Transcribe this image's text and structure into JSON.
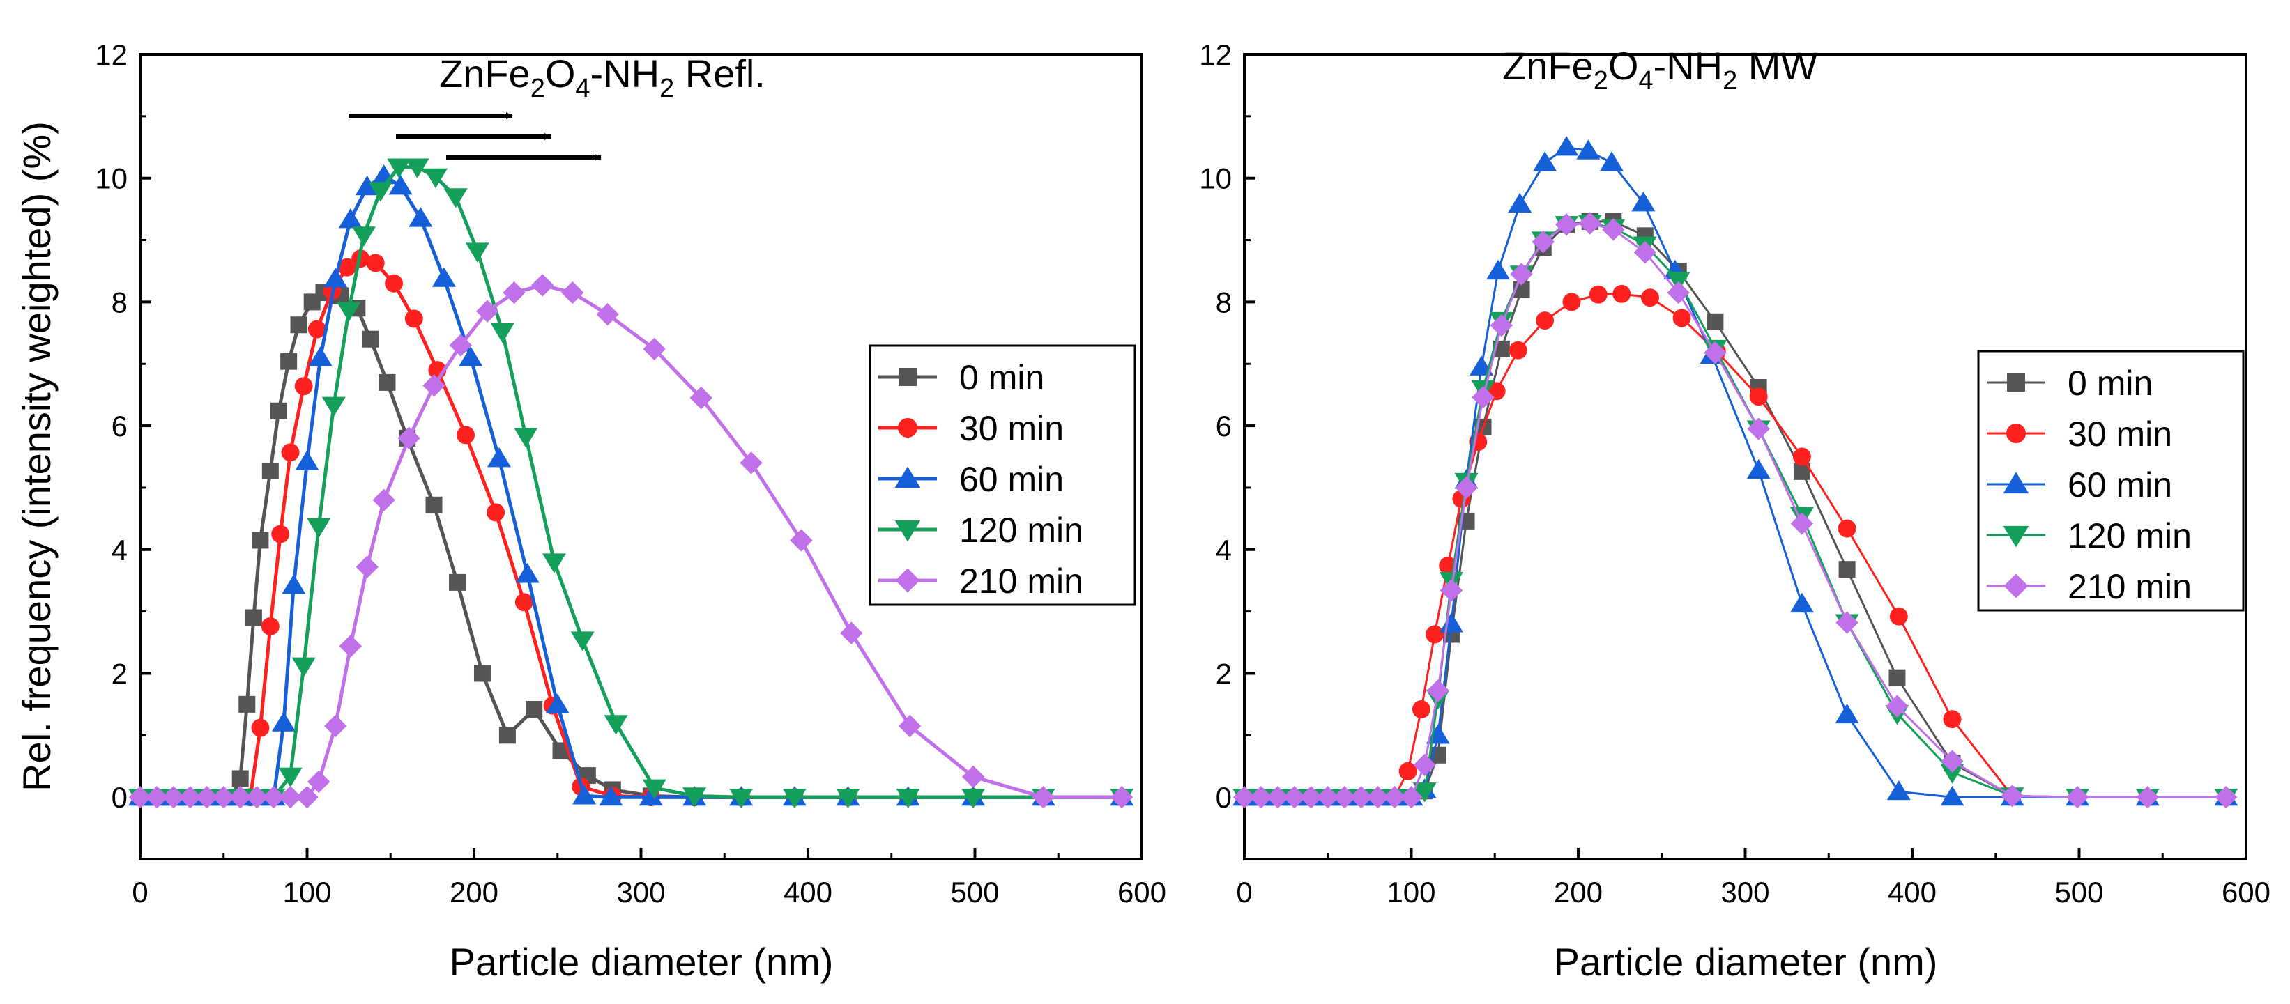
{
  "chart_data": [
    {
      "type": "line",
      "title_parts": [
        "ZnFe",
        "2",
        "O",
        "4",
        "-NH",
        "2",
        " Refl."
      ],
      "xlabel": "Particle diameter (nm)",
      "ylabel": "Rel. frequency (intensity weighted) (%)",
      "xlim": [
        0,
        600
      ],
      "ylim": [
        -1,
        12
      ],
      "xticks": [
        "0",
        "100",
        "200",
        "300",
        "400",
        "500",
        "600"
      ],
      "yticks": [
        "0",
        "2",
        "4",
        "6",
        "8",
        "10",
        "12"
      ],
      "legend_position": "right",
      "annotation": "three arrows pointing right above the peaks",
      "series": [
        {
          "name": "0 min",
          "color": "#555555",
          "marker": "square",
          "x": [
            0,
            10,
            20,
            30,
            40,
            50,
            55,
            60,
            64,
            68,
            72,
            78,
            83,
            89,
            95,
            103,
            110,
            120,
            130,
            138,
            148,
            160,
            176,
            190,
            205,
            220,
            236,
            252,
            268,
            283,
            306,
            332,
            360,
            392,
            424,
            460,
            499,
            541,
            588
          ],
          "y": [
            0,
            0,
            0,
            0,
            0,
            0,
            0,
            0.3,
            1.5,
            2.9,
            4.15,
            5.27,
            6.24,
            7.04,
            7.63,
            8.0,
            8.15,
            8.1,
            7.9,
            7.4,
            6.7,
            5.8,
            4.72,
            3.47,
            2.0,
            1.0,
            1.42,
            0.75,
            0.35,
            0.12,
            0.02,
            0,
            0,
            0,
            0,
            0,
            0,
            0,
            0
          ]
        },
        {
          "name": "30 min",
          "color": "#ff2020",
          "marker": "circle",
          "x": [
            0,
            10,
            20,
            30,
            40,
            50,
            60,
            66,
            72,
            78,
            84,
            90,
            98,
            106,
            115,
            124,
            132,
            141,
            152,
            164,
            178,
            195,
            213,
            230,
            247,
            264,
            283,
            306,
            332,
            360,
            392,
            424,
            460,
            499,
            541,
            588
          ],
          "y": [
            0,
            0,
            0,
            0,
            0,
            0,
            0,
            0,
            1.12,
            2.76,
            4.25,
            5.57,
            6.64,
            7.56,
            8.18,
            8.56,
            8.7,
            8.63,
            8.3,
            7.73,
            6.9,
            5.85,
            4.6,
            3.15,
            1.48,
            0.17,
            0.02,
            0,
            0,
            0,
            0,
            0,
            0,
            0,
            0,
            0
          ],
          "x_use": [
            0,
            10,
            20,
            30,
            40,
            50,
            60,
            66,
            72,
            78,
            84,
            90,
            98,
            106,
            115,
            124,
            132,
            141,
            152,
            164,
            178,
            195,
            213,
            230,
            247,
            264
          ]
        },
        {
          "name": "60 min",
          "color": "#1560d8",
          "marker": "triangle-up",
          "x": [
            0,
            10,
            20,
            30,
            40,
            50,
            60,
            70,
            80,
            86,
            92,
            100,
            108,
            117,
            126,
            136,
            146,
            156,
            168,
            182,
            198,
            215,
            232,
            250,
            266,
            282,
            306,
            332,
            360,
            392,
            424,
            460,
            499,
            541,
            588
          ],
          "y": [
            0,
            0,
            0,
            0,
            0,
            0,
            0,
            0,
            0,
            1.2,
            3.42,
            5.42,
            7.1,
            8.37,
            9.33,
            9.86,
            10.04,
            9.87,
            9.35,
            8.38,
            7.1,
            5.47,
            3.6,
            1.49,
            0.02,
            0,
            0,
            0,
            0,
            0,
            0,
            0,
            0,
            0,
            0
          ]
        },
        {
          "name": "120 min",
          "color": "#14a05a",
          "marker": "triangle-down",
          "x": [
            0,
            10,
            20,
            30,
            40,
            50,
            60,
            70,
            80,
            90,
            98,
            107,
            116,
            125,
            134,
            144,
            155,
            166,
            177,
            189,
            202,
            217,
            231,
            248,
            265,
            285,
            308,
            332,
            360,
            392,
            424,
            460,
            499,
            541,
            588
          ],
          "y": [
            0,
            0,
            0,
            0,
            0,
            0,
            0,
            0,
            0,
            0.34,
            2.12,
            4.37,
            6.33,
            7.86,
            9.08,
            9.8,
            10.18,
            10.18,
            10.02,
            9.7,
            8.82,
            7.52,
            5.83,
            3.8,
            2.54,
            1.19,
            0.15,
            0.02,
            0,
            0,
            0,
            0,
            0,
            0,
            0
          ]
        },
        {
          "name": "210 min",
          "color": "#c070e8",
          "marker": "diamond",
          "x": [
            0,
            10,
            20,
            30,
            40,
            50,
            60,
            70,
            80,
            90,
            100,
            107,
            117,
            126,
            136,
            146,
            161,
            176,
            192,
            208,
            224,
            241,
            259,
            280,
            308,
            336,
            366,
            396,
            426,
            461,
            499,
            541,
            588
          ],
          "y": [
            0,
            0,
            0,
            0,
            0,
            0,
            0,
            0,
            0,
            0,
            0,
            0.25,
            1.15,
            2.44,
            3.72,
            4.8,
            5.8,
            6.65,
            7.3,
            7.85,
            8.15,
            8.27,
            8.15,
            7.8,
            7.24,
            6.45,
            5.4,
            4.15,
            2.65,
            1.15,
            0.33,
            0,
            0
          ]
        }
      ]
    },
    {
      "type": "line",
      "title_parts": [
        "ZnFe",
        "2",
        "O",
        "4",
        "-NH",
        "2",
        " MW"
      ],
      "xlabel": "Particle diameter (nm)",
      "ylabel": "",
      "xlim": [
        0,
        600
      ],
      "ylim": [
        -1,
        12
      ],
      "xticks": [
        "0",
        "100",
        "200",
        "300",
        "400",
        "500",
        "600"
      ],
      "yticks": [
        "0",
        "2",
        "4",
        "6",
        "8",
        "10",
        "12"
      ],
      "legend_position": "right",
      "series": [
        {
          "name": "0 min",
          "color": "#555555",
          "marker": "square",
          "x": [
            0,
            10,
            20,
            30,
            40,
            50,
            60,
            70,
            80,
            90,
            100,
            108,
            116,
            124,
            133,
            143,
            154,
            166,
            179,
            193,
            207,
            221,
            240,
            260,
            282,
            308,
            334,
            361,
            391,
            424,
            460,
            499,
            541,
            588
          ],
          "y": [
            0,
            0,
            0,
            0,
            0,
            0,
            0,
            0,
            0,
            0,
            0,
            0.1,
            0.68,
            2.63,
            4.46,
            5.98,
            7.24,
            8.2,
            8.88,
            9.25,
            9.3,
            9.3,
            9.07,
            8.5,
            7.68,
            6.62,
            5.26,
            3.68,
            1.93,
            0.55,
            0.02,
            0,
            0,
            0
          ]
        },
        {
          "name": "30 min",
          "color": "#ff2020",
          "marker": "circle",
          "x": [
            0,
            10,
            20,
            30,
            40,
            50,
            60,
            70,
            80,
            90,
            98,
            106,
            114,
            122,
            130,
            140,
            151,
            164,
            180,
            196,
            212,
            226,
            243,
            262,
            283,
            308,
            334,
            361,
            392,
            424,
            460,
            499,
            541,
            588
          ],
          "y": [
            0,
            0,
            0,
            0,
            0,
            0,
            0,
            0,
            0,
            0,
            0.42,
            1.42,
            2.63,
            3.74,
            4.82,
            5.74,
            6.56,
            7.22,
            7.7,
            8.0,
            8.12,
            8.13,
            8.07,
            7.74,
            7.2,
            6.47,
            5.5,
            4.34,
            2.92,
            1.26,
            0.02,
            0,
            0,
            0
          ]
        },
        {
          "name": "60 min",
          "color": "#1560d8",
          "marker": "triangle-up",
          "x": [
            0,
            10,
            20,
            30,
            40,
            50,
            60,
            70,
            80,
            90,
            100,
            108,
            116,
            124,
            133,
            142,
            152,
            165,
            180,
            193,
            206,
            220,
            239,
            258,
            280,
            308,
            334,
            361,
            392,
            424,
            460,
            499,
            541,
            588
          ],
          "y": [
            0,
            0,
            0,
            0,
            0,
            0,
            0,
            0,
            0,
            0,
            0,
            0.12,
            1.0,
            2.8,
            5.12,
            6.95,
            8.5,
            9.58,
            10.25,
            10.5,
            10.44,
            10.25,
            9.6,
            8.5,
            7.14,
            5.28,
            3.12,
            1.33,
            0.09,
            0,
            0,
            0,
            0,
            0
          ]
        },
        {
          "name": "120 min",
          "color": "#14a05a",
          "marker": "triangle-down",
          "x": [
            0,
            10,
            20,
            30,
            40,
            50,
            60,
            70,
            80,
            90,
            100,
            108,
            116,
            124,
            133,
            143,
            154,
            166,
            179,
            193,
            207,
            221,
            240,
            260,
            282,
            308,
            334,
            361,
            391,
            424,
            460,
            499,
            541,
            588
          ],
          "y": [
            0,
            0,
            0,
            0,
            0,
            0,
            0,
            0,
            0,
            0,
            0,
            0.1,
            1.6,
            3.5,
            5.1,
            6.6,
            7.7,
            8.45,
            9.0,
            9.25,
            9.27,
            9.2,
            8.92,
            8.35,
            7.25,
            5.95,
            4.55,
            2.82,
            1.35,
            0.4,
            0.02,
            0,
            0,
            0
          ]
        },
        {
          "name": "210 min",
          "color": "#c070e8",
          "marker": "diamond",
          "x": [
            0,
            10,
            20,
            30,
            40,
            50,
            60,
            70,
            80,
            90,
            100,
            108,
            116,
            124,
            133,
            143,
            154,
            166,
            179,
            193,
            207,
            221,
            240,
            260,
            282,
            308,
            334,
            361,
            391,
            424,
            460,
            499,
            541,
            588
          ],
          "y": [
            0,
            0,
            0,
            0,
            0,
            0,
            0,
            0,
            0,
            0,
            0,
            0.52,
            1.72,
            3.34,
            5.0,
            6.46,
            7.62,
            8.45,
            8.97,
            9.25,
            9.27,
            9.17,
            8.8,
            8.15,
            7.18,
            5.95,
            4.42,
            2.82,
            1.47,
            0.58,
            0.02,
            0,
            0,
            0
          ]
        }
      ]
    }
  ]
}
